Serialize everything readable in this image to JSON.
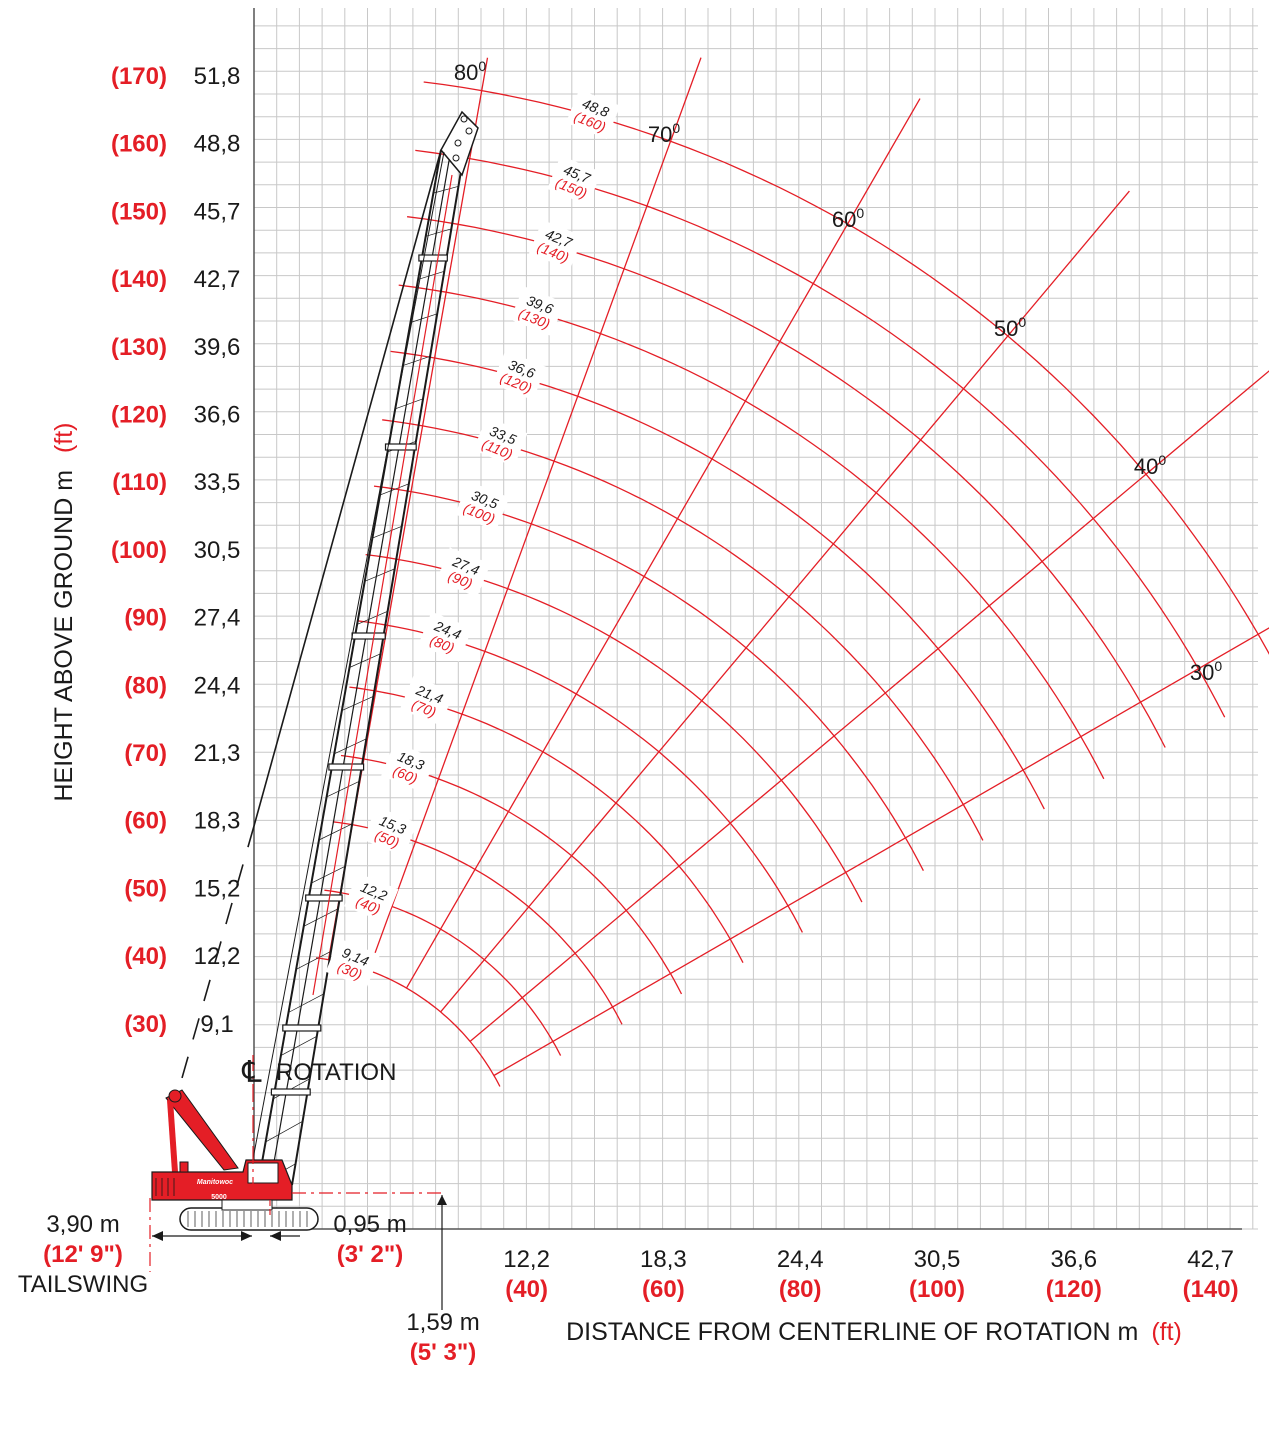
{
  "colors": {
    "red": "#e41e26",
    "black": "#1a1a1a",
    "grid": "#c8c8c8"
  },
  "y_axis": {
    "title_main": "HEIGHT ABOVE GROUND m",
    "title_unit": "(ft)",
    "ticks": [
      {
        "m": "51,8",
        "ft": "(170)"
      },
      {
        "m": "48,8",
        "ft": "(160)"
      },
      {
        "m": "45,7",
        "ft": "(150)"
      },
      {
        "m": "42,7",
        "ft": "(140)"
      },
      {
        "m": "39,6",
        "ft": "(130)"
      },
      {
        "m": "36,6",
        "ft": "(120)"
      },
      {
        "m": "33,5",
        "ft": "(110)"
      },
      {
        "m": "30,5",
        "ft": "(100)"
      },
      {
        "m": "27,4",
        "ft": "(90)"
      },
      {
        "m": "24,4",
        "ft": "(80)"
      },
      {
        "m": "21,3",
        "ft": "(70)"
      },
      {
        "m": "18,3",
        "ft": "(60)"
      },
      {
        "m": "15,2",
        "ft": "(50)"
      },
      {
        "m": "12,2",
        "ft": "(40)"
      },
      {
        "m": "9,1",
        "ft": "(30)"
      }
    ]
  },
  "x_axis": {
    "title_main": "DISTANCE FROM CENTERLINE OF ROTATION m",
    "title_unit": "(ft)",
    "ticks": [
      {
        "m": "12,2",
        "ft": "(40)"
      },
      {
        "m": "18,3",
        "ft": "(60)"
      },
      {
        "m": "24,4",
        "ft": "(80)"
      },
      {
        "m": "30,5",
        "ft": "(100)"
      },
      {
        "m": "36,6",
        "ft": "(120)"
      },
      {
        "m": "42,7",
        "ft": "(140)"
      }
    ]
  },
  "boom_angles": [
    {
      "deg": 80,
      "label": "80",
      "sup": "0"
    },
    {
      "deg": 70,
      "label": "70",
      "sup": "0"
    },
    {
      "deg": 60,
      "label": "60",
      "sup": "0"
    },
    {
      "deg": 50,
      "label": "50",
      "sup": "0"
    },
    {
      "deg": 40,
      "label": "40",
      "sup": "0"
    },
    {
      "deg": 30,
      "label": "30",
      "sup": "0"
    }
  ],
  "boom_lengths": [
    {
      "m": "48,8",
      "ft": "(160)",
      "value": 48.8
    },
    {
      "m": "45,7",
      "ft": "(150)",
      "value": 45.7
    },
    {
      "m": "42,7",
      "ft": "(140)",
      "value": 42.7
    },
    {
      "m": "39,6",
      "ft": "(130)",
      "value": 39.6
    },
    {
      "m": "36,6",
      "ft": "(120)",
      "value": 36.6
    },
    {
      "m": "33,5",
      "ft": "(110)",
      "value": 33.5
    },
    {
      "m": "30,5",
      "ft": "(100)",
      "value": 30.5
    },
    {
      "m": "27,4",
      "ft": "(90)",
      "value": 27.4
    },
    {
      "m": "24,4",
      "ft": "(80)",
      "value": 24.4
    },
    {
      "m": "21,4",
      "ft": "(70)",
      "value": 21.4
    },
    {
      "m": "18,3",
      "ft": "(60)",
      "value": 18.3
    },
    {
      "m": "15,3",
      "ft": "(50)",
      "value": 15.3
    },
    {
      "m": "12,2",
      "ft": "(40)",
      "value": 12.2
    },
    {
      "m": "9,14",
      "ft": "(30)",
      "value": 9.14
    }
  ],
  "dimensions": {
    "tailswing": {
      "m": "3,90 m",
      "ft": "(12' 9\")",
      "label": "TAILSWING"
    },
    "pivot_offset": {
      "m": "0,95 m",
      "ft": "(3' 2\")"
    },
    "pivot_height": {
      "m": "1,59 m",
      "ft": "(5' 3\")"
    },
    "rotation": {
      "symbol": "℄",
      "label": "ROTATION"
    }
  },
  "crane": {
    "brand": "Manitowoc",
    "model": "5000"
  }
}
